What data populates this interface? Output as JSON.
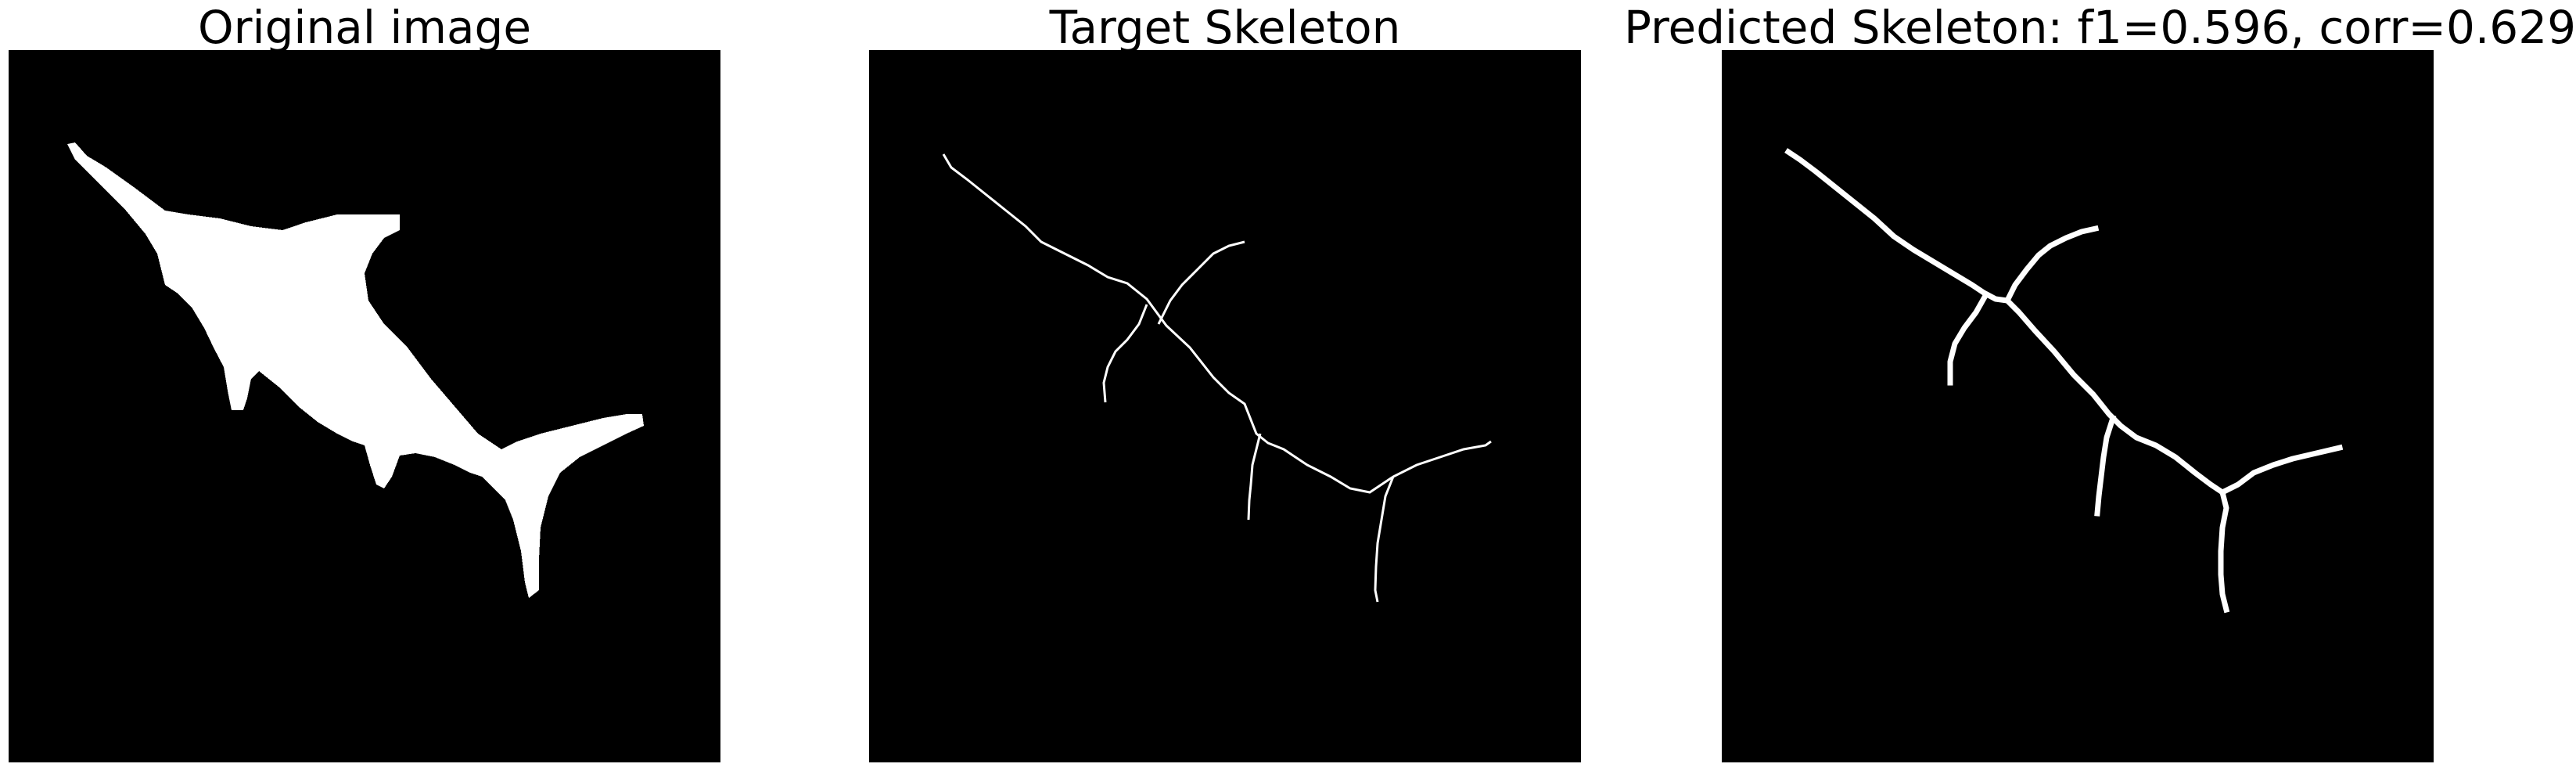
{
  "panels": [
    {
      "title": "Original image"
    },
    {
      "title": "Target Skeleton"
    },
    {
      "title": "Predicted Skeleton: f1=0.596, corr=0.629"
    }
  ],
  "colors": {
    "background": "#000000",
    "foreground": "#ffffff",
    "page": "#ffffff"
  }
}
